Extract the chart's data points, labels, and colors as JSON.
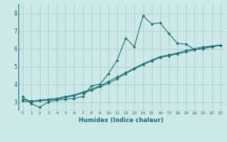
{
  "xlabel": "Humidex (Indice chaleur)",
  "bg_color": "#cce8e8",
  "line_color": "#1a7070",
  "grid_color": "#aacece",
  "xlim": [
    -0.5,
    23.5
  ],
  "ylim": [
    2.5,
    8.5
  ],
  "xticks": [
    0,
    1,
    2,
    3,
    4,
    5,
    6,
    7,
    8,
    9,
    10,
    11,
    12,
    13,
    14,
    15,
    16,
    17,
    18,
    19,
    20,
    21,
    22,
    23
  ],
  "yticks": [
    3,
    4,
    5,
    6,
    7,
    8
  ],
  "curve1_x": [
    0,
    1,
    2,
    3,
    4,
    5,
    6,
    7,
    8,
    9,
    10,
    11,
    12,
    13,
    14,
    15,
    16,
    17,
    18,
    19,
    20,
    21,
    22,
    23
  ],
  "curve1_y": [
    3.3,
    2.9,
    2.7,
    3.0,
    3.1,
    3.15,
    3.2,
    3.3,
    3.9,
    4.0,
    4.6,
    5.35,
    6.6,
    6.1,
    7.85,
    7.4,
    7.45,
    6.85,
    6.3,
    6.25,
    5.95,
    6.0,
    6.1,
    6.2
  ],
  "curve2_x": [
    0,
    1,
    2,
    3,
    4,
    5,
    6,
    7,
    8,
    9,
    10,
    11,
    12,
    13,
    14,
    15,
    16,
    17,
    18,
    19,
    20,
    21,
    22,
    23
  ],
  "curve2_y": [
    3.05,
    3.0,
    3.05,
    3.1,
    3.15,
    3.25,
    3.35,
    3.5,
    3.65,
    3.85,
    4.05,
    4.3,
    4.6,
    4.85,
    5.1,
    5.3,
    5.5,
    5.6,
    5.7,
    5.82,
    5.93,
    6.03,
    6.1,
    6.2
  ],
  "curve3_x": [
    0,
    1,
    2,
    3,
    4,
    5,
    6,
    7,
    8,
    9,
    10,
    11,
    12,
    13,
    14,
    15,
    16,
    17,
    18,
    19,
    20,
    21,
    22,
    23
  ],
  "curve3_y": [
    3.15,
    3.05,
    3.1,
    3.15,
    3.2,
    3.3,
    3.4,
    3.55,
    3.72,
    3.9,
    4.15,
    4.4,
    4.65,
    4.9,
    5.15,
    5.35,
    5.55,
    5.65,
    5.75,
    5.9,
    6.0,
    6.1,
    6.15,
    6.2
  ]
}
